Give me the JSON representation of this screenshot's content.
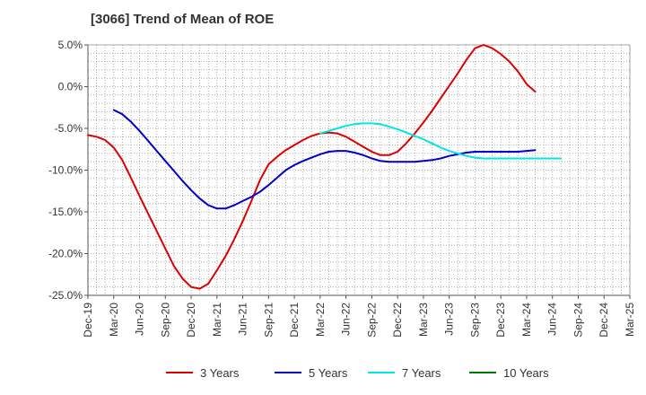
{
  "chart_data": {
    "type": "line",
    "title": "[3066]  Trend of Mean of ROE",
    "xlabel": "",
    "ylabel": "",
    "ylim": [
      -25,
      5
    ],
    "y_ticks": [
      "5.0%",
      "0.0%",
      "-5.0%",
      "-10.0%",
      "-15.0%",
      "-20.0%",
      "-25.0%"
    ],
    "y_tick_values": [
      5,
      0,
      -5,
      -10,
      -15,
      -20,
      -25
    ],
    "x_ticks": [
      "Dec-19",
      "Mar-20",
      "Jun-20",
      "Sep-20",
      "Dec-20",
      "Mar-21",
      "Jun-21",
      "Sep-21",
      "Dec-21",
      "Mar-22",
      "Jun-22",
      "Sep-22",
      "Dec-22",
      "Mar-23",
      "Jun-23",
      "Sep-23",
      "Dec-23",
      "Mar-24",
      "Jun-24",
      "Sep-24",
      "Dec-24",
      "Mar-25"
    ],
    "grid": true,
    "legend_position": "bottom",
    "series": [
      {
        "name": "3 Years",
        "color": "#dd0000",
        "start_index": 0,
        "values": [
          -5.8,
          -6.0,
          -6.4,
          -7.3,
          -8.8,
          -10.9,
          -13.1,
          -15.2,
          -17.3,
          -19.4,
          -21.5,
          -23.0,
          -24.0,
          -24.2,
          -23.6,
          -22.0,
          -20.3,
          -18.3,
          -16.1,
          -13.7,
          -11.2,
          -9.3,
          -8.4,
          -7.6,
          -7.0,
          -6.4,
          -5.9,
          -5.6,
          -5.5,
          -5.6,
          -6.0,
          -6.6,
          -7.2,
          -7.8,
          -8.2,
          -8.2,
          -7.8,
          -6.8,
          -5.6,
          -4.3,
          -2.9,
          -1.4,
          0.1,
          1.6,
          3.2,
          4.6,
          5.0,
          4.6,
          3.9,
          3.0,
          1.8,
          0.3,
          -1.3,
          -0.6
        ],
        "trim_end": true
      },
      {
        "name": "5 Years",
        "color": "#0000cc",
        "start_index": 3,
        "values": [
          -2.8,
          -3.3,
          -4.2,
          -5.3,
          -6.5,
          -7.7,
          -8.9,
          -10.1,
          -11.3,
          -12.4,
          -13.4,
          -14.2,
          -14.6,
          -14.6,
          -14.2,
          -13.7,
          -13.2,
          -12.6,
          -11.8,
          -10.9,
          -10.0,
          -9.4,
          -8.9,
          -8.5,
          -8.1,
          -7.8,
          -7.7,
          -7.7,
          -7.9,
          -8.2,
          -8.6,
          -8.9,
          -9.0,
          -9.0,
          -9.0,
          -9.0,
          -8.9,
          -8.8,
          -8.6,
          -8.3,
          -8.1,
          -7.9,
          -7.8,
          -7.8,
          -7.8,
          -7.8,
          -7.8,
          -7.8,
          -7.7,
          -7.6
        ]
      },
      {
        "name": "7 Years",
        "color": "#00e5e5",
        "start_index": 27,
        "values": [
          -5.6,
          -5.3,
          -5.0,
          -4.7,
          -4.5,
          -4.4,
          -4.4,
          -4.5,
          -4.8,
          -5.1,
          -5.5,
          -5.9,
          -6.3,
          -6.8,
          -7.3,
          -7.7,
          -8.0,
          -8.3,
          -8.5,
          -8.6,
          -8.6,
          -8.6,
          -8.6,
          -8.6,
          -8.6,
          -8.6,
          -8.6,
          -8.6,
          -8.6
        ]
      },
      {
        "name": "10 Years",
        "color": "#007700",
        "start_index": 0,
        "values": []
      }
    ]
  }
}
